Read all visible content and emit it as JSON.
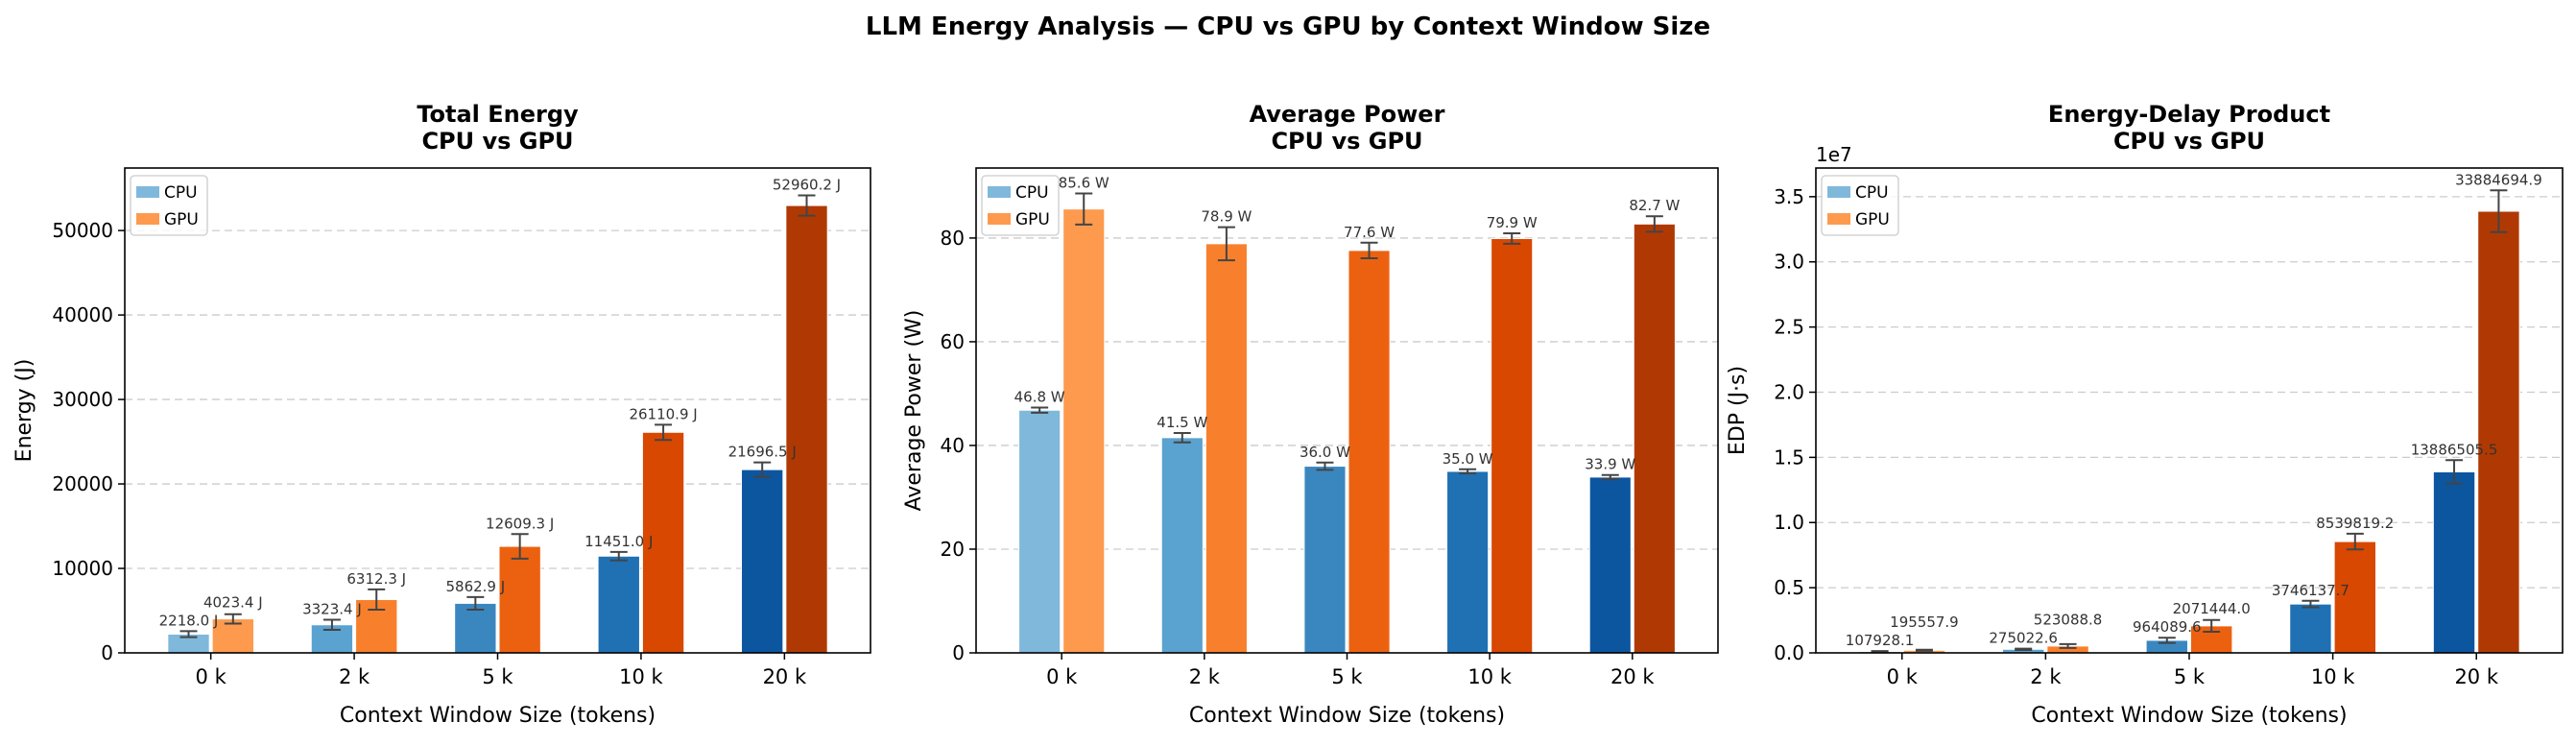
{
  "suptitle": "LLM Energy Analysis — CPU vs GPU by Context Window Size",
  "colors": {
    "cpu": [
      "#7fb8da",
      "#5aa2cf",
      "#3a87c0",
      "#2070b4",
      "#0c56a0"
    ],
    "gpu": [
      "#fd9a4e",
      "#f8802d",
      "#ec6110",
      "#d84801",
      "#b03903"
    ],
    "legend_cpu": "#7fb8da",
    "legend_gpu": "#fd9a4e",
    "error_bar": "#444444",
    "grid": "#cccccc"
  },
  "chart_data": [
    {
      "type": "bar",
      "title": "Total Energy",
      "subtitle": "CPU vs GPU",
      "xlabel": "Context Window Size (tokens)",
      "ylabel": "Energy (J)",
      "categories": [
        "0 k",
        "2 k",
        "5 k",
        "10 k",
        "20 k"
      ],
      "ylim": [
        0,
        57400
      ],
      "yticks": [
        0,
        10000,
        20000,
        30000,
        40000,
        50000
      ],
      "ytick_labels": [
        "0",
        "10000",
        "20000",
        "30000",
        "40000",
        "50000"
      ],
      "grid": "y-dashed",
      "legend": "top-left",
      "series": [
        {
          "name": "CPU",
          "values": [
            2218.0,
            3323.4,
            5862.9,
            11451.0,
            21696.5
          ],
          "errors": [
            350,
            600,
            750,
            500,
            850
          ],
          "labels": [
            "2218.0 J",
            "3323.4 J",
            "5862.9 J",
            "11451.0 J",
            "21696.5 J"
          ]
        },
        {
          "name": "GPU",
          "values": [
            4023.4,
            6312.3,
            12609.3,
            26110.9,
            52960.2
          ],
          "errors": [
            550,
            1200,
            1450,
            900,
            1200
          ],
          "labels": [
            "4023.4 J",
            "6312.3 J",
            "12609.3 J",
            "26110.9 J",
            "52960.2 J"
          ]
        }
      ]
    },
    {
      "type": "bar",
      "title": "Average Power",
      "subtitle": "CPU vs GPU",
      "xlabel": "Context Window Size (tokens)",
      "ylabel": "Average Power (W)",
      "categories": [
        "0 k",
        "2 k",
        "5 k",
        "10 k",
        "20 k"
      ],
      "ylim": [
        0,
        93.5
      ],
      "yticks": [
        0,
        20,
        40,
        60,
        80
      ],
      "ytick_labels": [
        "0",
        "20",
        "40",
        "60",
        "80"
      ],
      "grid": "y-dashed",
      "legend": "top-left",
      "series": [
        {
          "name": "CPU",
          "values": [
            46.8,
            41.5,
            36.0,
            35.0,
            33.9
          ],
          "errors": [
            0.5,
            0.9,
            0.7,
            0.4,
            0.4
          ],
          "labels": [
            "46.8 W",
            "41.5 W",
            "36.0 W",
            "35.0 W",
            "33.9 W"
          ]
        },
        {
          "name": "GPU",
          "values": [
            85.6,
            78.9,
            77.6,
            79.9,
            82.7
          ],
          "errors": [
            3.0,
            3.2,
            1.5,
            1.0,
            1.5
          ],
          "labels": [
            "85.6 W",
            "78.9 W",
            "77.6 W",
            "79.9 W",
            "82.7 W"
          ]
        }
      ]
    },
    {
      "type": "bar",
      "title": "Energy-Delay Product",
      "subtitle": "CPU vs GPU",
      "xlabel": "Context Window Size (tokens)",
      "ylabel": "EDP (J·s)",
      "offset_text": "1e7",
      "categories": [
        "0 k",
        "2 k",
        "5 k",
        "10 k",
        "20 k"
      ],
      "ylim": [
        0,
        37200000
      ],
      "yticks": [
        0,
        5000000,
        10000000,
        15000000,
        20000000,
        25000000,
        30000000,
        35000000
      ],
      "ytick_labels": [
        "0.0",
        "0.5",
        "1.0",
        "1.5",
        "2.0",
        "2.5",
        "3.0",
        "3.5"
      ],
      "grid": "y-dashed",
      "legend": "top-left",
      "series": [
        {
          "name": "CPU",
          "values": [
            107928.1,
            275022.6,
            964089.6,
            3746137.7,
            13886505.5
          ],
          "errors": [
            30000,
            50000,
            200000,
            250000,
            900000
          ],
          "labels": [
            "107928.1",
            "275022.6",
            "964089.6",
            "3746137.7",
            "13886505.5"
          ]
        },
        {
          "name": "GPU",
          "values": [
            195557.9,
            523088.8,
            2071444.0,
            8539819.2,
            33884694.9
          ],
          "errors": [
            40000,
            150000,
            450000,
            600000,
            1600000
          ],
          "labels": [
            "195557.9",
            "523088.8",
            "2071444.0",
            "8539819.2",
            "33884694.9"
          ]
        }
      ]
    }
  ]
}
